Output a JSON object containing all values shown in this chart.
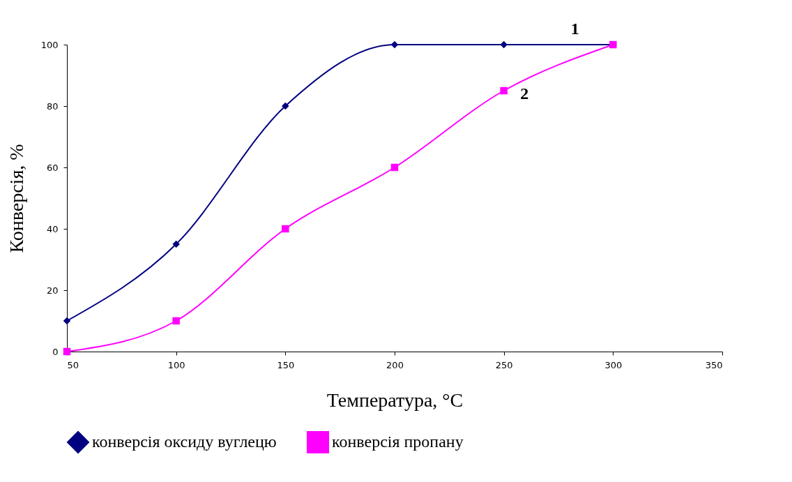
{
  "chart_data": {
    "type": "line",
    "xlabel": "Температура, °C",
    "ylabel": "Конверсія, %",
    "x": [
      50,
      100,
      150,
      200,
      250,
      300
    ],
    "series": [
      {
        "name": "конверсія оксиду вуглецю",
        "color": "#000080",
        "marker": "diamond",
        "values": [
          10,
          35,
          80,
          100,
          100,
          100
        ]
      },
      {
        "name": "конверсія пропану",
        "color": "#ff00ff",
        "marker": "square",
        "values": [
          0,
          10,
          40,
          60,
          85,
          100
        ]
      }
    ],
    "xlim": [
      50,
      350
    ],
    "xticks": [
      50,
      100,
      150,
      200,
      250,
      300,
      350
    ],
    "ylim": [
      0,
      100
    ],
    "yticks": [
      0,
      20,
      40,
      60,
      80,
      100
    ],
    "grid": false,
    "legend": "bottom",
    "annotations": [
      {
        "text": "1",
        "x": 280,
        "y": 100
      },
      {
        "text": "2",
        "x": 255,
        "y": 87
      }
    ]
  }
}
